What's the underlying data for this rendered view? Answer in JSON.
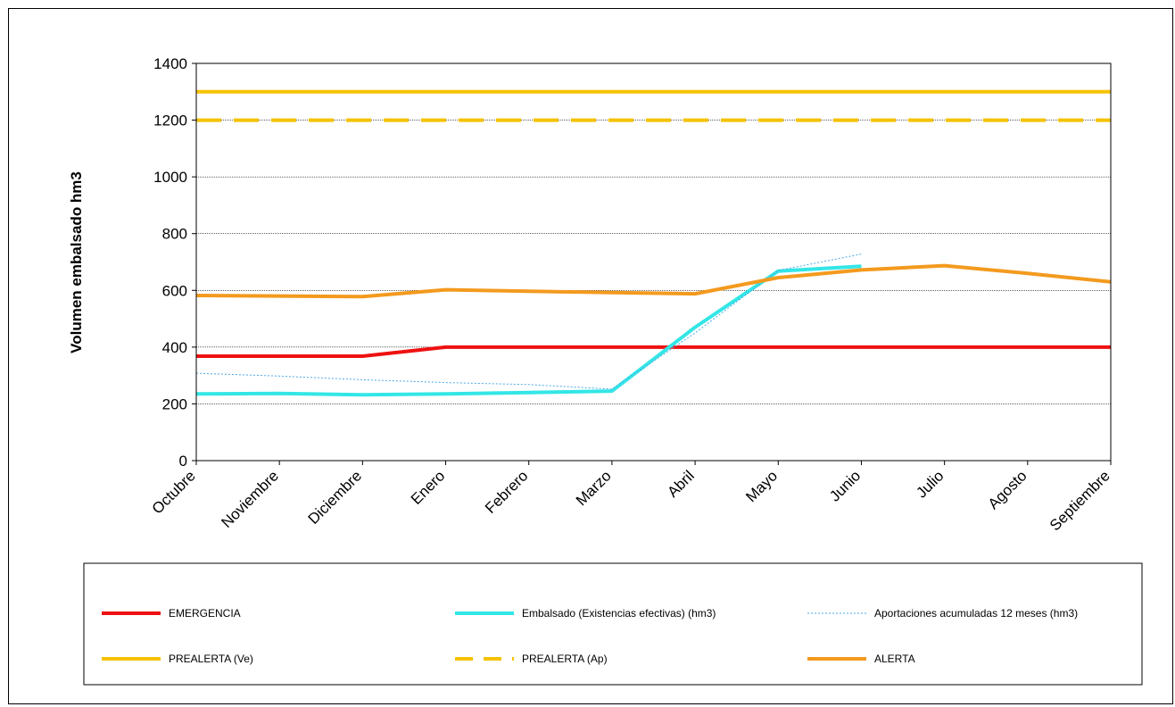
{
  "chart_data": {
    "type": "line",
    "title": "",
    "xlabel": "",
    "ylabel": "Volumen embalsado hm3",
    "ylim": [
      0,
      1400
    ],
    "yticks": [
      0,
      200,
      400,
      600,
      800,
      1000,
      1200,
      1400
    ],
    "grid": "horizontal",
    "legend_position": "bottom",
    "categories": [
      "Octubre",
      "Noviembre",
      "Diciembre",
      "Enero",
      "Febrero",
      "Marzo",
      "Abril",
      "Mayo",
      "Junio",
      "Julio",
      "Agosto",
      "Septiembre"
    ],
    "series": [
      {
        "name": "EMERGENCIA",
        "color": "#ee1111",
        "style": "solid",
        "width": 4,
        "values": [
          368,
          368,
          368,
          400,
          400,
          400,
          400,
          400,
          400,
          400,
          400,
          400
        ]
      },
      {
        "name": "Embalsado (Existencias efectivas) (hm3)",
        "color": "#33e6e6",
        "style": "solid",
        "width": 4,
        "values": [
          235,
          237,
          232,
          235,
          240,
          245,
          470,
          668,
          685,
          null,
          null,
          null
        ]
      },
      {
        "name": "Aportaciones acumuladas 12 meses (hm3)",
        "color": "#4aa8e8",
        "style": "dotted",
        "width": 1,
        "values": [
          308,
          298,
          285,
          275,
          268,
          252,
          450,
          670,
          728,
          null,
          null,
          null
        ]
      },
      {
        "name": "PREALERTA (Ve)",
        "color": "#f5c200",
        "style": "solid",
        "width": 4,
        "values": [
          1300,
          1300,
          1300,
          1300,
          1300,
          1300,
          1300,
          1300,
          1300,
          1300,
          1300,
          1300
        ]
      },
      {
        "name": "PREALERTA (Ap)",
        "color": "#f5c200",
        "style": "dashed",
        "width": 4,
        "values": [
          1200,
          1200,
          1200,
          1200,
          1200,
          1200,
          1200,
          1200,
          1200,
          1200,
          1200,
          1200
        ]
      },
      {
        "name": "ALERTA",
        "color": "#f39a1e",
        "style": "solid",
        "width": 4,
        "values": [
          582,
          580,
          578,
          602,
          597,
          592,
          588,
          645,
          672,
          687,
          660,
          630
        ]
      }
    ],
    "legend_order": [
      0,
      1,
      2,
      3,
      4,
      5
    ]
  }
}
